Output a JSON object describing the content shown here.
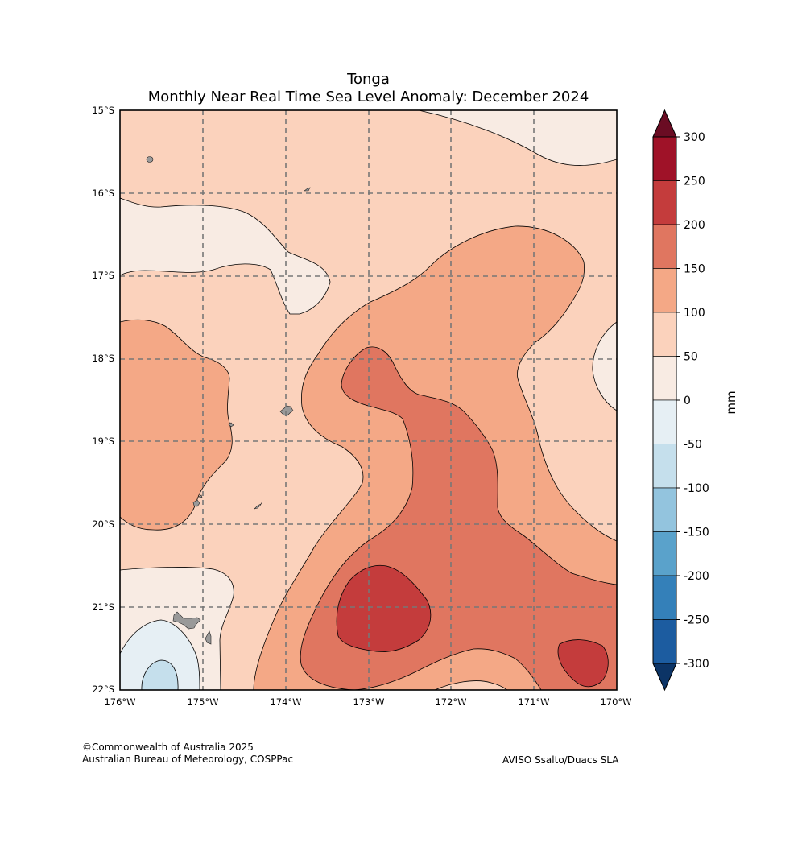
{
  "title": "Tonga",
  "subtitle": "Monthly Near Real Time Sea Level Anomaly: December 2024",
  "lat_labels": [
    "15°S",
    "16°S",
    "17°S",
    "18°S",
    "19°S",
    "20°S",
    "21°S",
    "22°S"
  ],
  "lon_labels": [
    "176°W",
    "175°W",
    "174°W",
    "173°W",
    "172°W",
    "171°W",
    "170°W"
  ],
  "colorbar": {
    "unit_label": "mm",
    "tick_labels": [
      "300",
      "250",
      "200",
      "150",
      "100",
      "50",
      "0",
      "-50",
      "-100",
      "-150",
      "-200",
      "-250",
      "-300"
    ],
    "colors": [
      "#9f1228",
      "#c43c3c",
      "#e07660",
      "#f4a886",
      "#fbd2bc",
      "#f8ebe3",
      "#e6eff4",
      "#c5dfec",
      "#93c4de",
      "#5aa2cb",
      "#3480b9",
      "#1c5ca0"
    ],
    "over_color": "#6a0c23",
    "under_color": "#0c3466"
  },
  "land_color": "#999999",
  "credit": {
    "line1": "©Commonwealth of Australia 2025",
    "line2": "Australian Bureau of Meteorology, COSPPac",
    "source": "AVISO Ssalto/Duacs SLA"
  }
}
